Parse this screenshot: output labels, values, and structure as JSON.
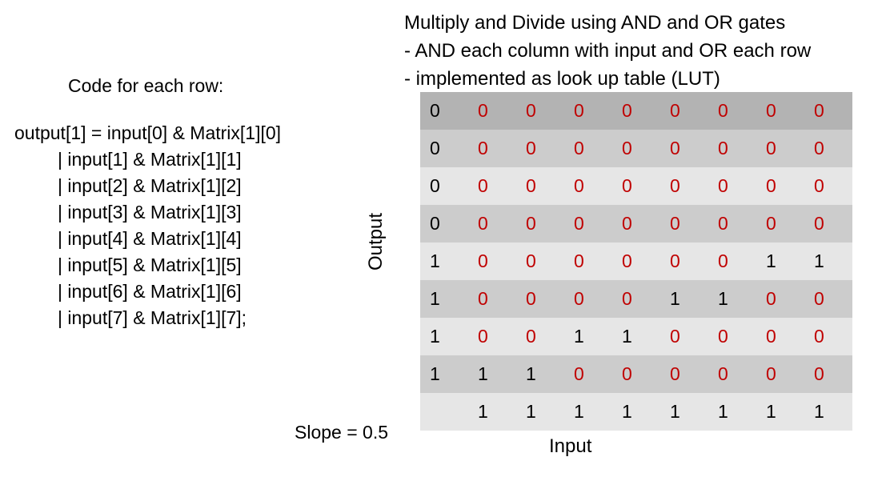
{
  "header": {
    "lines": [
      "Multiply and Divide using AND and OR gates",
      "- AND each column with input and OR each row",
      "- implemented as look up table (LUT)"
    ]
  },
  "code": {
    "title": "Code for each row:",
    "lines": [
      "output[1] = input[0] & Matrix[1][0]",
      "| input[1] & Matrix[1][1]",
      "| input[2] & Matrix[1][2]",
      "| input[3] & Matrix[1][3]",
      "| input[4] & Matrix[1][4]",
      "| input[5] & Matrix[1][5]",
      "| input[6] & Matrix[1][6]",
      "| input[7] & Matrix[1][7];"
    ]
  },
  "table": {
    "y_label": "Output",
    "x_label": "Input",
    "note": "Slope = 0.5",
    "rows": [
      [
        "0",
        "0",
        "0",
        "0",
        "0",
        "0",
        "0",
        "0",
        "0"
      ],
      [
        "0",
        "0",
        "0",
        "0",
        "0",
        "0",
        "0",
        "0",
        "0"
      ],
      [
        "0",
        "0",
        "0",
        "0",
        "0",
        "0",
        "0",
        "0",
        "0"
      ],
      [
        "0",
        "0",
        "0",
        "0",
        "0",
        "0",
        "0",
        "0",
        "0"
      ],
      [
        "1",
        "0",
        "0",
        "0",
        "0",
        "0",
        "0",
        "1",
        "1"
      ],
      [
        "1",
        "0",
        "0",
        "0",
        "0",
        "1",
        "1",
        "0",
        "0"
      ],
      [
        "1",
        "0",
        "0",
        "1",
        "1",
        "0",
        "0",
        "0",
        "0"
      ],
      [
        "1",
        "1",
        "1",
        "0",
        "0",
        "0",
        "0",
        "0",
        "0"
      ],
      [
        null,
        "1",
        "1",
        "1",
        "1",
        "1",
        "1",
        "1",
        "1"
      ]
    ]
  }
}
